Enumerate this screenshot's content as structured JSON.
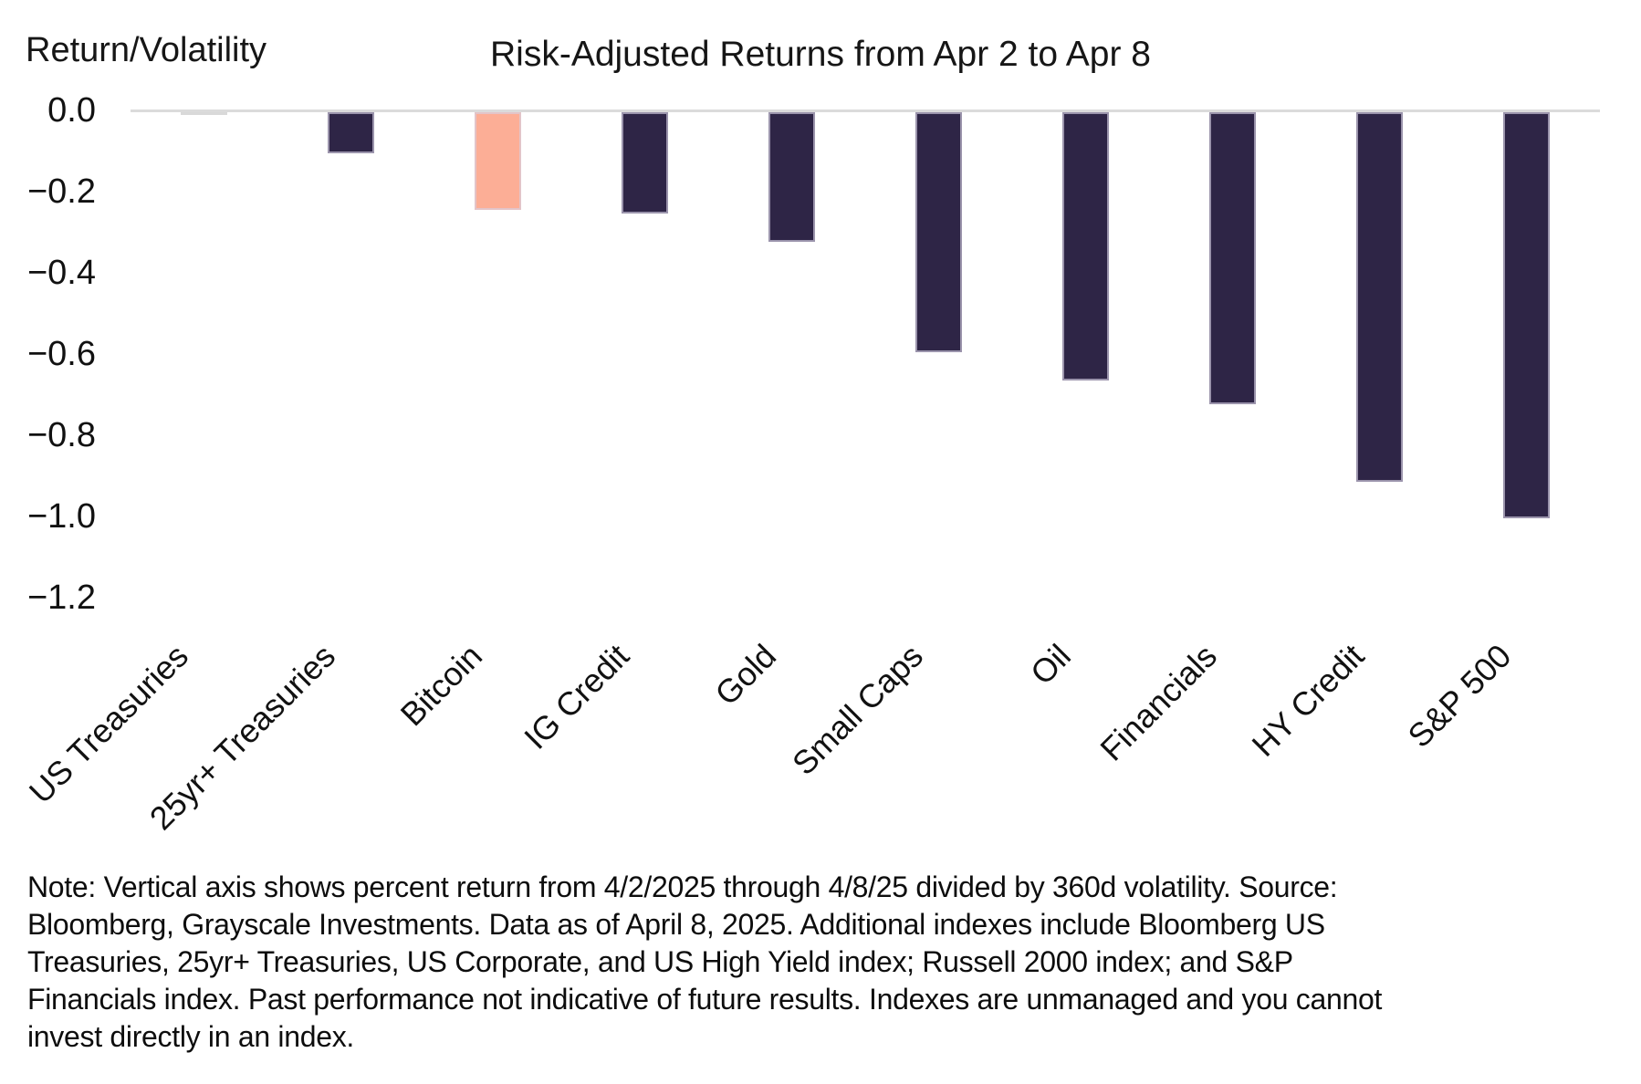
{
  "header": {
    "y_axis_title": "Return/Volatility",
    "title": "Risk-Adjusted Returns from Apr 2 to Apr 8"
  },
  "chart_data": {
    "type": "bar",
    "title": "Risk-Adjusted Returns from Apr 2 to Apr 8",
    "ylabel": "Return/Volatility",
    "xlabel": "",
    "categories": [
      "US Treasuries",
      "25yr+ Treasuries",
      "Bitcoin",
      "IG Credit",
      "Gold",
      "Small Caps",
      "Oil",
      "Financials",
      "HY Credit",
      "S&P 500"
    ],
    "values": [
      -0.005,
      -0.1,
      -0.24,
      -0.25,
      -0.32,
      -0.59,
      -0.66,
      -0.72,
      -0.91,
      -1.0
    ],
    "bar_colors": [
      "#D9D9D9",
      "#2E2546",
      "#FCAE96",
      "#2E2546",
      "#2E2546",
      "#2E2546",
      "#2E2546",
      "#2E2546",
      "#2E2546",
      "#2E2546"
    ],
    "ylim": [
      -1.2,
      0.0
    ],
    "ytick_values": [
      0.0,
      -0.2,
      -0.4,
      -0.6,
      -0.8,
      -1.0,
      -1.2
    ],
    "ytick_labels": [
      "0.0",
      "−0.2",
      "−0.4",
      "−0.6",
      "−0.8",
      "−1.0",
      "−1.2"
    ],
    "grid": "zero-line-only",
    "legend": "none",
    "x_label_rotation_deg": 45
  },
  "colors": {
    "dark_bar": "#2E2546",
    "bitcoin_bar": "#FCAE96",
    "us_treasuries_bar": "#D9D9D9",
    "zero_line": "#DBDBDB",
    "text": "#111111"
  },
  "note": {
    "lines": [
      "Note: Vertical axis shows percent return from 4/2/2025 through 4/8/25 divided by 360d volatility. Source:",
      "Bloomberg, Grayscale Investments. Data as of April 8, 2025. Additional indexes include Bloomberg US",
      "Treasuries, 25yr+ Treasuries, US Corporate, and US High Yield index; Russell 2000 index; and S&P",
      "Financials index. Past performance not indicative of future results. Indexes are unmanaged and you cannot",
      "invest directly in an index."
    ]
  }
}
